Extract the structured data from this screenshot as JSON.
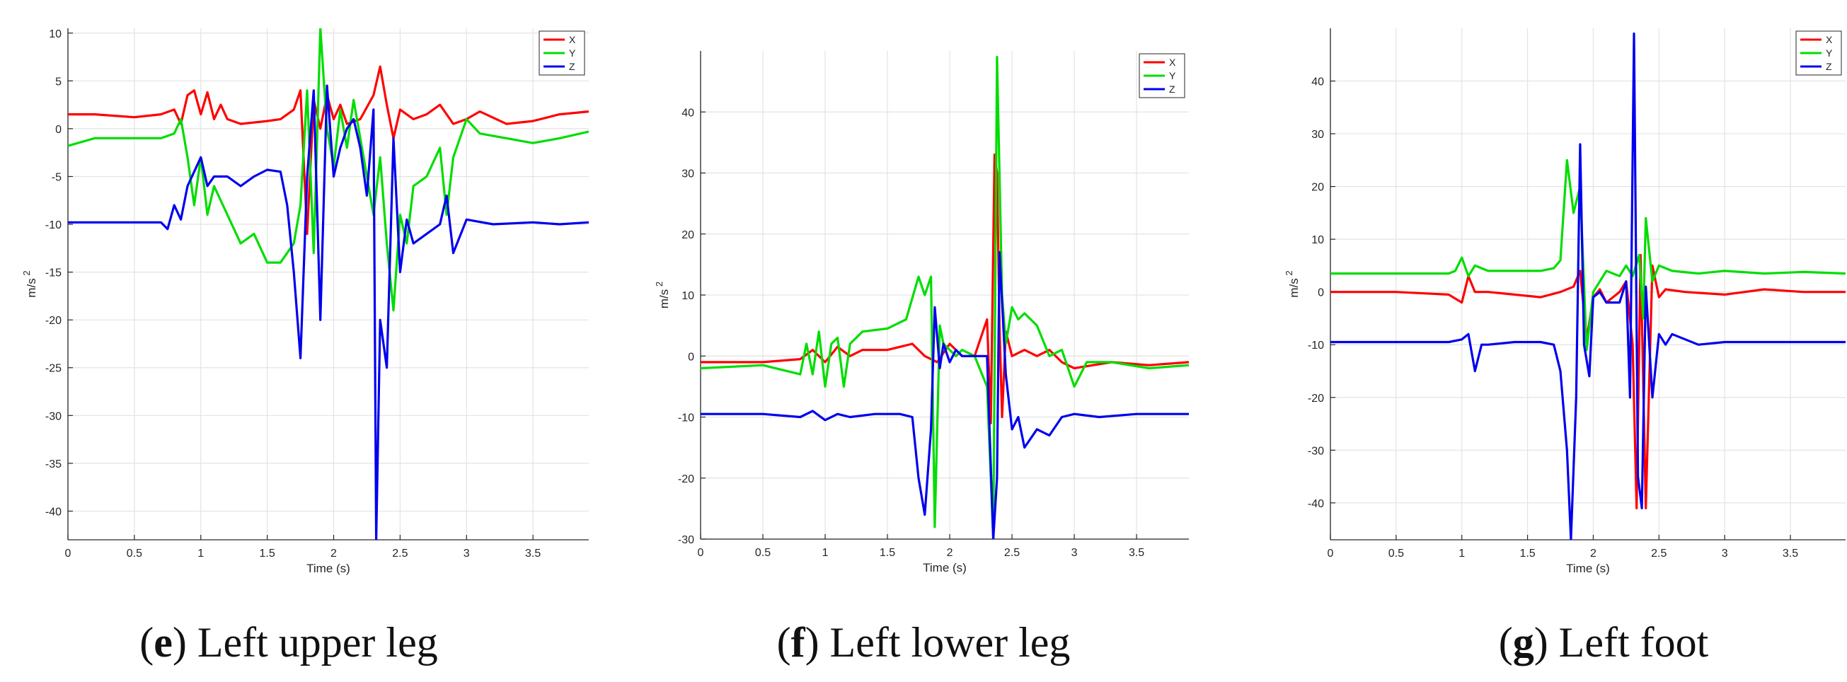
{
  "chart_data": [
    {
      "type": "line",
      "caption": {
        "letter": "e",
        "text": "Left upper leg"
      },
      "xlabel": "Time (s)",
      "ylabel": "m/s",
      "ylabel_sup": "2",
      "xlim": [
        0,
        3.92
      ],
      "ylim": [
        -43,
        10.5
      ],
      "xticks": [
        0,
        0.5,
        1,
        1.5,
        2,
        2.5,
        3,
        3.5
      ],
      "xtick_labels": [
        "0",
        "0.5",
        "1",
        "1.5",
        "2",
        "2.5",
        "3",
        "3.5"
      ],
      "yticks": [
        10,
        5,
        0,
        -5,
        -10,
        -15,
        -20,
        -25,
        -30,
        -35,
        -40
      ],
      "ytick_labels": [
        "10",
        "5",
        "0",
        "-5",
        "-10",
        "-15",
        "-20",
        "-25",
        "-30",
        "-35",
        "-40"
      ],
      "grid": true,
      "legend_position": "top-right",
      "series": [
        {
          "name": "X",
          "color": "#ff0000",
          "x": [
            0,
            0.2,
            0.5,
            0.7,
            0.8,
            0.85,
            0.9,
            0.95,
            1.0,
            1.05,
            1.1,
            1.15,
            1.2,
            1.3,
            1.5,
            1.6,
            1.7,
            1.75,
            1.8,
            1.85,
            1.9,
            1.95,
            2.0,
            2.05,
            2.1,
            2.2,
            2.3,
            2.35,
            2.4,
            2.45,
            2.5,
            2.6,
            2.7,
            2.8,
            2.9,
            3.0,
            3.1,
            3.3,
            3.5,
            3.7,
            3.92
          ],
          "values": [
            1.5,
            1.5,
            1.2,
            1.5,
            2.0,
            0.5,
            3.5,
            4.0,
            1.5,
            3.8,
            1.0,
            2.5,
            1.0,
            0.5,
            0.8,
            1.0,
            2.0,
            4.0,
            -11.0,
            3.0,
            0.0,
            3.5,
            1.0,
            2.5,
            0.5,
            1.0,
            3.5,
            6.5,
            2.5,
            -1.0,
            2.0,
            1.0,
            1.5,
            2.5,
            0.5,
            1.0,
            1.8,
            0.5,
            0.8,
            1.5,
            1.8
          ]
        },
        {
          "name": "Y",
          "color": "#00dd00",
          "x": [
            0,
            0.2,
            0.5,
            0.7,
            0.8,
            0.85,
            0.9,
            0.95,
            1.0,
            1.05,
            1.1,
            1.2,
            1.3,
            1.4,
            1.5,
            1.6,
            1.7,
            1.75,
            1.8,
            1.85,
            1.9,
            1.95,
            2.0,
            2.05,
            2.1,
            2.15,
            2.2,
            2.3,
            2.35,
            2.4,
            2.45,
            2.5,
            2.55,
            2.6,
            2.7,
            2.8,
            2.85,
            2.9,
            3.0,
            3.1,
            3.3,
            3.5,
            3.7,
            3.92
          ],
          "values": [
            -1.8,
            -1.0,
            -1.0,
            -1.0,
            -0.5,
            1.0,
            -3.0,
            -8.0,
            -3.0,
            -9.0,
            -6.0,
            -9.0,
            -12.0,
            -11.0,
            -14.0,
            -14.0,
            -12.0,
            -8.0,
            4.0,
            -13.0,
            10.5,
            0.0,
            -4.0,
            2.0,
            -2.0,
            3.0,
            -1.0,
            -9.0,
            -3.0,
            -12.0,
            -19.0,
            -9.0,
            -12.0,
            -6.0,
            -5.0,
            -2.0,
            -9.0,
            -3.0,
            1.0,
            -0.5,
            -1.0,
            -1.5,
            -1.0,
            -0.3
          ]
        },
        {
          "name": "Z",
          "color": "#0000ee",
          "x": [
            0,
            0.3,
            0.6,
            0.7,
            0.75,
            0.8,
            0.85,
            0.9,
            0.95,
            1.0,
            1.05,
            1.1,
            1.2,
            1.3,
            1.4,
            1.5,
            1.6,
            1.65,
            1.7,
            1.75,
            1.8,
            1.85,
            1.9,
            1.95,
            2.0,
            2.05,
            2.1,
            2.15,
            2.2,
            2.25,
            2.3,
            2.32,
            2.35,
            2.4,
            2.45,
            2.5,
            2.55,
            2.6,
            2.7,
            2.8,
            2.85,
            2.9,
            3.0,
            3.2,
            3.5,
            3.7,
            3.92
          ],
          "values": [
            -9.8,
            -9.8,
            -9.8,
            -9.8,
            -10.5,
            -8.0,
            -9.5,
            -6.0,
            -4.5,
            -3.0,
            -6.0,
            -5.0,
            -5.0,
            -6.0,
            -5.0,
            -4.3,
            -4.5,
            -8.0,
            -15.0,
            -24.0,
            -5.0,
            4.0,
            -20.0,
            4.5,
            -5.0,
            -2.0,
            0.0,
            1.0,
            -2.0,
            -7.0,
            2.0,
            -43.0,
            -20.0,
            -25.0,
            -1.0,
            -15.0,
            -9.5,
            -12.0,
            -11.0,
            -10.0,
            -7.0,
            -13.0,
            -9.5,
            -10.0,
            -9.8,
            -10.0,
            -9.8
          ]
        }
      ]
    },
    {
      "type": "line",
      "caption": {
        "letter": "f",
        "text": "Left lower leg"
      },
      "xlabel": "Time (s)",
      "ylabel": "m/s",
      "ylabel_sup": "2",
      "xlim": [
        0,
        3.92
      ],
      "ylim": [
        -30,
        50
      ],
      "xticks": [
        0,
        0.5,
        1,
        1.5,
        2,
        2.5,
        3,
        3.5
      ],
      "xtick_labels": [
        "0",
        "0.5",
        "1",
        "1.5",
        "2",
        "2.5",
        "3",
        "3.5"
      ],
      "yticks": [
        40,
        30,
        20,
        10,
        0,
        -10,
        -20,
        -30
      ],
      "ytick_labels": [
        "40",
        "30",
        "20",
        "10",
        "0",
        "-10",
        "-20",
        "-30"
      ],
      "grid": true,
      "legend_position": "top-right",
      "series": [
        {
          "name": "X",
          "color": "#ff0000",
          "x": [
            0,
            0.5,
            0.8,
            0.9,
            1.0,
            1.1,
            1.2,
            1.3,
            1.5,
            1.7,
            1.8,
            1.9,
            2.0,
            2.1,
            2.2,
            2.3,
            2.33,
            2.36,
            2.38,
            2.4,
            2.42,
            2.45,
            2.5,
            2.6,
            2.7,
            2.8,
            2.9,
            3.0,
            3.3,
            3.6,
            3.92
          ],
          "values": [
            -1.0,
            -1.0,
            -0.5,
            1.0,
            -1.0,
            1.5,
            0.0,
            1.0,
            1.0,
            2.0,
            0.0,
            -1.0,
            2.0,
            0.0,
            0.0,
            6.0,
            -11.0,
            33.0,
            30.0,
            5.0,
            -10.0,
            4.0,
            0.0,
            1.0,
            0.0,
            1.0,
            -1.0,
            -2.0,
            -1.0,
            -1.5,
            -1.0
          ]
        },
        {
          "name": "Y",
          "color": "#00dd00",
          "x": [
            0,
            0.5,
            0.8,
            0.85,
            0.9,
            0.95,
            1.0,
            1.05,
            1.1,
            1.15,
            1.2,
            1.3,
            1.5,
            1.65,
            1.75,
            1.8,
            1.85,
            1.88,
            1.92,
            1.95,
            2.0,
            2.05,
            2.1,
            2.2,
            2.3,
            2.35,
            2.38,
            2.42,
            2.45,
            2.5,
            2.55,
            2.6,
            2.7,
            2.8,
            2.9,
            3.0,
            3.1,
            3.3,
            3.6,
            3.92
          ],
          "values": [
            -2.0,
            -1.5,
            -3.0,
            2.0,
            -3.0,
            4.0,
            -5.0,
            2.0,
            3.0,
            -5.0,
            2.0,
            4.0,
            4.5,
            6.0,
            13.0,
            10.0,
            13.0,
            -28.0,
            5.0,
            2.0,
            1.0,
            0.0,
            1.0,
            0.0,
            -5.0,
            -30.0,
            49.0,
            10.0,
            2.0,
            8.0,
            6.0,
            7.0,
            5.0,
            0.0,
            1.0,
            -5.0,
            -1.0,
            -1.0,
            -2.0,
            -1.5
          ]
        },
        {
          "name": "Z",
          "color": "#0000ee",
          "x": [
            0,
            0.5,
            0.8,
            0.9,
            1.0,
            1.1,
            1.2,
            1.4,
            1.6,
            1.7,
            1.75,
            1.8,
            1.85,
            1.88,
            1.92,
            1.95,
            2.0,
            2.05,
            2.1,
            2.2,
            2.3,
            2.35,
            2.38,
            2.4,
            2.45,
            2.5,
            2.55,
            2.6,
            2.7,
            2.8,
            2.9,
            3.0,
            3.2,
            3.5,
            3.7,
            3.92
          ],
          "values": [
            -9.5,
            -9.5,
            -10.0,
            -9.0,
            -10.5,
            -9.5,
            -10.0,
            -9.5,
            -9.5,
            -10.0,
            -20.0,
            -26.0,
            -12.0,
            8.0,
            -2.0,
            2.0,
            -1.0,
            1.0,
            0.0,
            0.0,
            0.0,
            -30.0,
            -20.0,
            17.0,
            -3.0,
            -12.0,
            -10.0,
            -15.0,
            -12.0,
            -13.0,
            -10.0,
            -9.5,
            -10.0,
            -9.5,
            -9.5,
            -9.5
          ]
        }
      ]
    },
    {
      "type": "line",
      "caption": {
        "letter": "g",
        "text": "Left foot"
      },
      "xlabel": "Time (s)",
      "ylabel": "m/s",
      "ylabel_sup": "2",
      "xlim": [
        0,
        3.92
      ],
      "ylim": [
        -47,
        50
      ],
      "xticks": [
        0,
        0.5,
        1,
        1.5,
        2,
        2.5,
        3,
        3.5
      ],
      "xtick_labels": [
        "0",
        "0.5",
        "1",
        "1.5",
        "2",
        "2.5",
        "3",
        "3.5"
      ],
      "yticks": [
        40,
        30,
        20,
        10,
        0,
        -10,
        -20,
        -30,
        -40
      ],
      "ytick_labels": [
        "40",
        "30",
        "20",
        "10",
        "0",
        "-10",
        "-20",
        "-30",
        "-40"
      ],
      "grid": true,
      "legend_position": "top-right",
      "series": [
        {
          "name": "X",
          "color": "#ff0000",
          "x": [
            0,
            0.5,
            0.9,
            1.0,
            1.05,
            1.1,
            1.2,
            1.4,
            1.6,
            1.75,
            1.85,
            1.9,
            1.95,
            2.0,
            2.05,
            2.1,
            2.2,
            2.25,
            2.3,
            2.33,
            2.36,
            2.4,
            2.45,
            2.5,
            2.55,
            2.7,
            3.0,
            3.3,
            3.6,
            3.92
          ],
          "values": [
            0.0,
            0.0,
            -0.5,
            -2.0,
            3.0,
            0.0,
            0.0,
            -0.5,
            -1.0,
            0.0,
            1.0,
            4.0,
            -9.0,
            -1.0,
            0.5,
            -2.0,
            0.0,
            2.0,
            -10.0,
            -41.0,
            7.0,
            -41.0,
            5.0,
            -1.0,
            0.5,
            0.0,
            -0.5,
            0.5,
            0.0,
            0.0
          ]
        },
        {
          "name": "Y",
          "color": "#00dd00",
          "x": [
            0,
            0.5,
            0.9,
            0.95,
            1.0,
            1.05,
            1.1,
            1.2,
            1.4,
            1.6,
            1.7,
            1.75,
            1.8,
            1.85,
            1.9,
            1.95,
            2.0,
            2.05,
            2.1,
            2.2,
            2.25,
            2.3,
            2.35,
            2.38,
            2.4,
            2.45,
            2.5,
            2.6,
            2.8,
            3.0,
            3.3,
            3.6,
            3.92
          ],
          "values": [
            3.5,
            3.5,
            3.5,
            4.0,
            6.5,
            3.0,
            5.0,
            4.0,
            4.0,
            4.0,
            4.5,
            6.0,
            25.0,
            15.0,
            20.0,
            -11.0,
            0.0,
            2.0,
            4.0,
            3.0,
            5.0,
            3.0,
            7.0,
            -5.0,
            14.0,
            2.0,
            5.0,
            4.0,
            3.5,
            4.0,
            3.5,
            3.8,
            3.5
          ]
        },
        {
          "name": "Z",
          "color": "#0000ee",
          "x": [
            0,
            0.5,
            0.9,
            1.0,
            1.05,
            1.1,
            1.15,
            1.2,
            1.4,
            1.6,
            1.7,
            1.75,
            1.8,
            1.83,
            1.87,
            1.9,
            1.93,
            1.97,
            2.0,
            2.05,
            2.1,
            2.2,
            2.25,
            2.28,
            2.31,
            2.34,
            2.37,
            2.4,
            2.45,
            2.5,
            2.55,
            2.6,
            2.8,
            3.0,
            3.3,
            3.6,
            3.92
          ],
          "values": [
            -9.5,
            -9.5,
            -9.5,
            -9.0,
            -8.0,
            -15.0,
            -10.0,
            -10.0,
            -9.5,
            -9.5,
            -10.0,
            -15.0,
            -30.0,
            -47.0,
            -20.0,
            28.0,
            -10.0,
            -16.0,
            -1.0,
            0.0,
            -2.0,
            -2.0,
            2.0,
            -20.0,
            49.0,
            -35.0,
            -41.0,
            1.0,
            -20.0,
            -8.0,
            -10.0,
            -8.0,
            -10.0,
            -9.5,
            -9.5,
            -9.5,
            -9.5
          ]
        }
      ]
    }
  ]
}
